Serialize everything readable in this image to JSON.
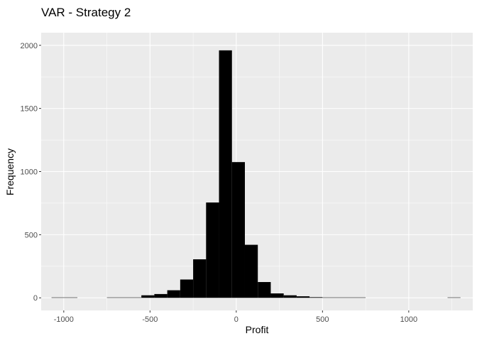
{
  "chart_data": {
    "type": "bar",
    "title": "VAR - Strategy 2",
    "xlabel": "Profit",
    "ylabel": "Frequency",
    "xlim": [
      -1131,
      1371
    ],
    "ylim": [
      -100,
      2100
    ],
    "x_ticks": [
      -1000,
      -500,
      0,
      500,
      1000
    ],
    "x_tick_labels": [
      "-1000",
      "-500",
      "0",
      "500",
      "1000"
    ],
    "y_ticks": [
      0,
      500,
      1000,
      1500,
      2000
    ],
    "y_tick_labels": [
      "0",
      "500",
      "1000",
      "1500",
      "2000"
    ],
    "bin_width": 50,
    "bins": [
      {
        "start": -1071,
        "end": -921,
        "count": 3
      },
      {
        "start": -750,
        "end": -550,
        "count": 3
      },
      {
        "start": -550,
        "end": -475,
        "count": 20
      },
      {
        "start": -475,
        "end": -400,
        "count": 30
      },
      {
        "start": -400,
        "end": -325,
        "count": 60
      },
      {
        "start": -325,
        "end": -250,
        "count": 145
      },
      {
        "start": -250,
        "end": -175,
        "count": 305
      },
      {
        "start": -175,
        "end": -100,
        "count": 755
      },
      {
        "start": -100,
        "end": -25,
        "count": 1960
      },
      {
        "start": -25,
        "end": 50,
        "count": 1075
      },
      {
        "start": 50,
        "end": 125,
        "count": 420
      },
      {
        "start": 125,
        "end": 200,
        "count": 125
      },
      {
        "start": 200,
        "end": 275,
        "count": 35
      },
      {
        "start": 275,
        "end": 350,
        "count": 20
      },
      {
        "start": 350,
        "end": 425,
        "count": 12
      },
      {
        "start": 425,
        "end": 500,
        "count": 5
      },
      {
        "start": 500,
        "end": 750,
        "count": 3
      },
      {
        "start": 1225,
        "end": 1300,
        "count": 3
      }
    ],
    "bar_color": "#000000",
    "panel_background": "#EBEBEB",
    "grid_color": "#FFFFFF",
    "grid": true,
    "legend": "none"
  }
}
